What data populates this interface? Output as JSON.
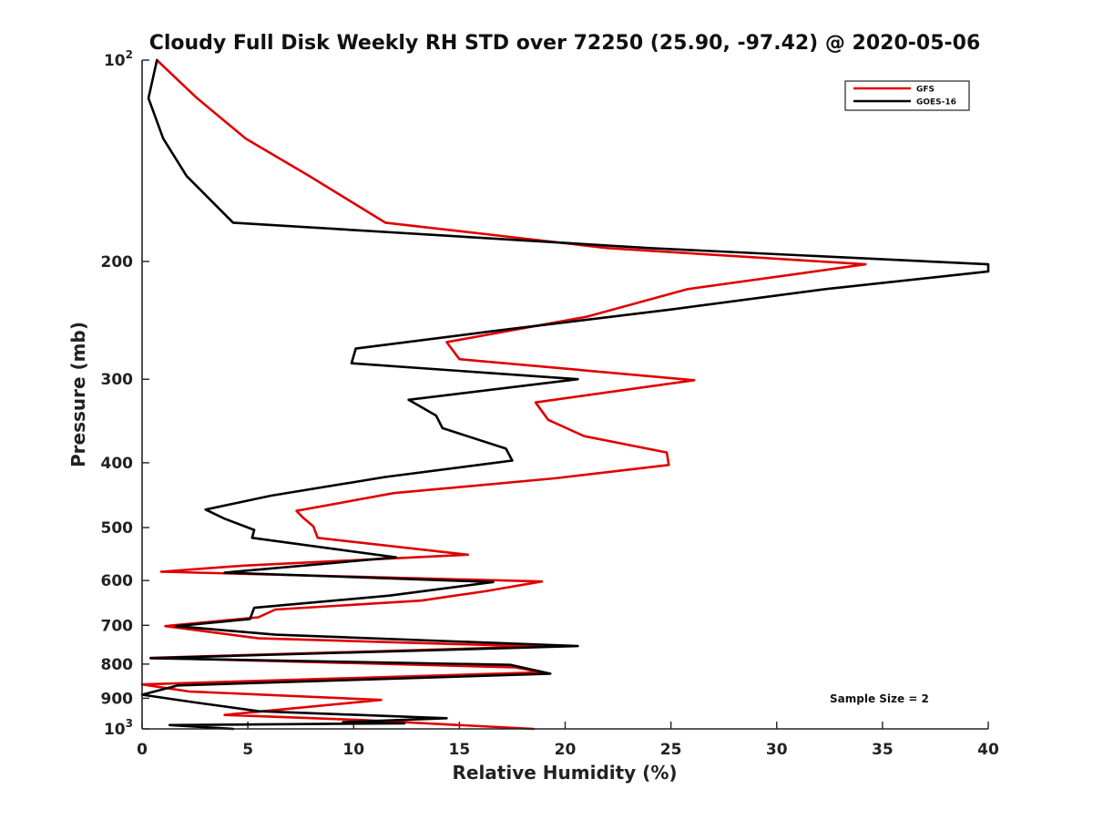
{
  "chart_data": {
    "type": "line",
    "title": "Cloudy Full Disk Weekly RH STD over 72250 (25.90, -97.42) @ 2020-05-06",
    "xlabel": "Relative Humidity (%)",
    "ylabel": "Pressure (mb)",
    "xlim": [
      0,
      40
    ],
    "ylim": [
      100,
      1000
    ],
    "y_scale": "log",
    "y_reversed": true,
    "grid": false,
    "legend_position": "top-right",
    "xticks": [
      0,
      5,
      10,
      15,
      20,
      25,
      30,
      35,
      40
    ],
    "x_tick_labels": [
      "0",
      "5",
      "10",
      "15",
      "20",
      "25",
      "30",
      "35",
      "40"
    ],
    "yticks": [
      100,
      200,
      300,
      400,
      500,
      600,
      700,
      800,
      900,
      1000
    ],
    "y_tick_labels": [
      {
        "base": "10",
        "exp": "2"
      },
      {
        "base": "200",
        "exp": ""
      },
      {
        "base": "300",
        "exp": ""
      },
      {
        "base": "400",
        "exp": ""
      },
      {
        "base": "500",
        "exp": ""
      },
      {
        "base": "600",
        "exp": ""
      },
      {
        "base": "700",
        "exp": ""
      },
      {
        "base": "800",
        "exp": ""
      },
      {
        "base": "900",
        "exp": ""
      },
      {
        "base": "10",
        "exp": "3"
      }
    ],
    "annotation": "Sample Size = 2",
    "series": [
      {
        "name": "GFS",
        "color": "#e00000",
        "points": [
          [
            0.7,
            100
          ],
          [
            2.6,
            114
          ],
          [
            4.9,
            131
          ],
          [
            7.9,
            149
          ],
          [
            11.5,
            175
          ],
          [
            22.0,
            191
          ],
          [
            34.2,
            202
          ],
          [
            25.8,
            220
          ],
          [
            21.0,
            242
          ],
          [
            14.4,
            264
          ],
          [
            15.0,
            280
          ],
          [
            26.1,
            301
          ],
          [
            18.6,
            325
          ],
          [
            19.2,
            345
          ],
          [
            20.9,
            365
          ],
          [
            24.8,
            386
          ],
          [
            24.9,
            403
          ],
          [
            19.5,
            422
          ],
          [
            11.9,
            444
          ],
          [
            7.3,
            472
          ],
          [
            7.6,
            483
          ],
          [
            8.1,
            498
          ],
          [
            8.3,
            518
          ],
          [
            15.4,
            549
          ],
          [
            4.8,
            570
          ],
          [
            0.9,
            582
          ],
          [
            18.9,
            602
          ],
          [
            16.3,
            622
          ],
          [
            13.2,
            643
          ],
          [
            6.3,
            663
          ],
          [
            5.5,
            681
          ],
          [
            1.1,
            702
          ],
          [
            5.5,
            732
          ],
          [
            18.8,
            753
          ],
          [
            0.4,
            783
          ],
          [
            17.6,
            809
          ],
          [
            18.9,
            823
          ],
          [
            0.0,
            858
          ],
          [
            2.2,
            879
          ],
          [
            11.3,
            905
          ],
          [
            3.9,
            953
          ],
          [
            10.4,
            970
          ],
          [
            18.5,
            1000
          ]
        ]
      },
      {
        "name": "GOES-16",
        "color": "#000000",
        "points": [
          [
            0.7,
            100
          ],
          [
            0.3,
            114
          ],
          [
            1.0,
            131
          ],
          [
            2.1,
            149
          ],
          [
            4.3,
            175
          ],
          [
            24.0,
            191
          ],
          [
            40.0,
            202
          ],
          [
            40.0,
            207
          ],
          [
            32.3,
            220
          ],
          [
            25.0,
            236
          ],
          [
            16.7,
            254
          ],
          [
            10.1,
            270
          ],
          [
            9.9,
            284
          ],
          [
            20.6,
            300
          ],
          [
            12.6,
            322
          ],
          [
            13.9,
            340
          ],
          [
            14.2,
            355
          ],
          [
            17.2,
            381
          ],
          [
            17.5,
            397
          ],
          [
            11.5,
            420
          ],
          [
            6.1,
            448
          ],
          [
            3.0,
            470
          ],
          [
            3.9,
            485
          ],
          [
            5.3,
            504
          ],
          [
            5.2,
            518
          ],
          [
            12.0,
            554
          ],
          [
            3.9,
            584
          ],
          [
            16.6,
            603
          ],
          [
            11.7,
            632
          ],
          [
            5.3,
            659
          ],
          [
            5.1,
            685
          ],
          [
            1.6,
            702
          ],
          [
            6.3,
            723
          ],
          [
            20.6,
            752
          ],
          [
            0.4,
            784
          ],
          [
            17.4,
            802
          ],
          [
            19.3,
            827
          ],
          [
            1.7,
            861
          ],
          [
            0.0,
            889
          ],
          [
            2.4,
            912
          ],
          [
            5.5,
            941
          ],
          [
            14.4,
            964
          ],
          [
            9.5,
            977
          ],
          [
            12.4,
            981
          ],
          [
            1.3,
            987
          ],
          [
            4.3,
            1000
          ]
        ]
      }
    ]
  }
}
